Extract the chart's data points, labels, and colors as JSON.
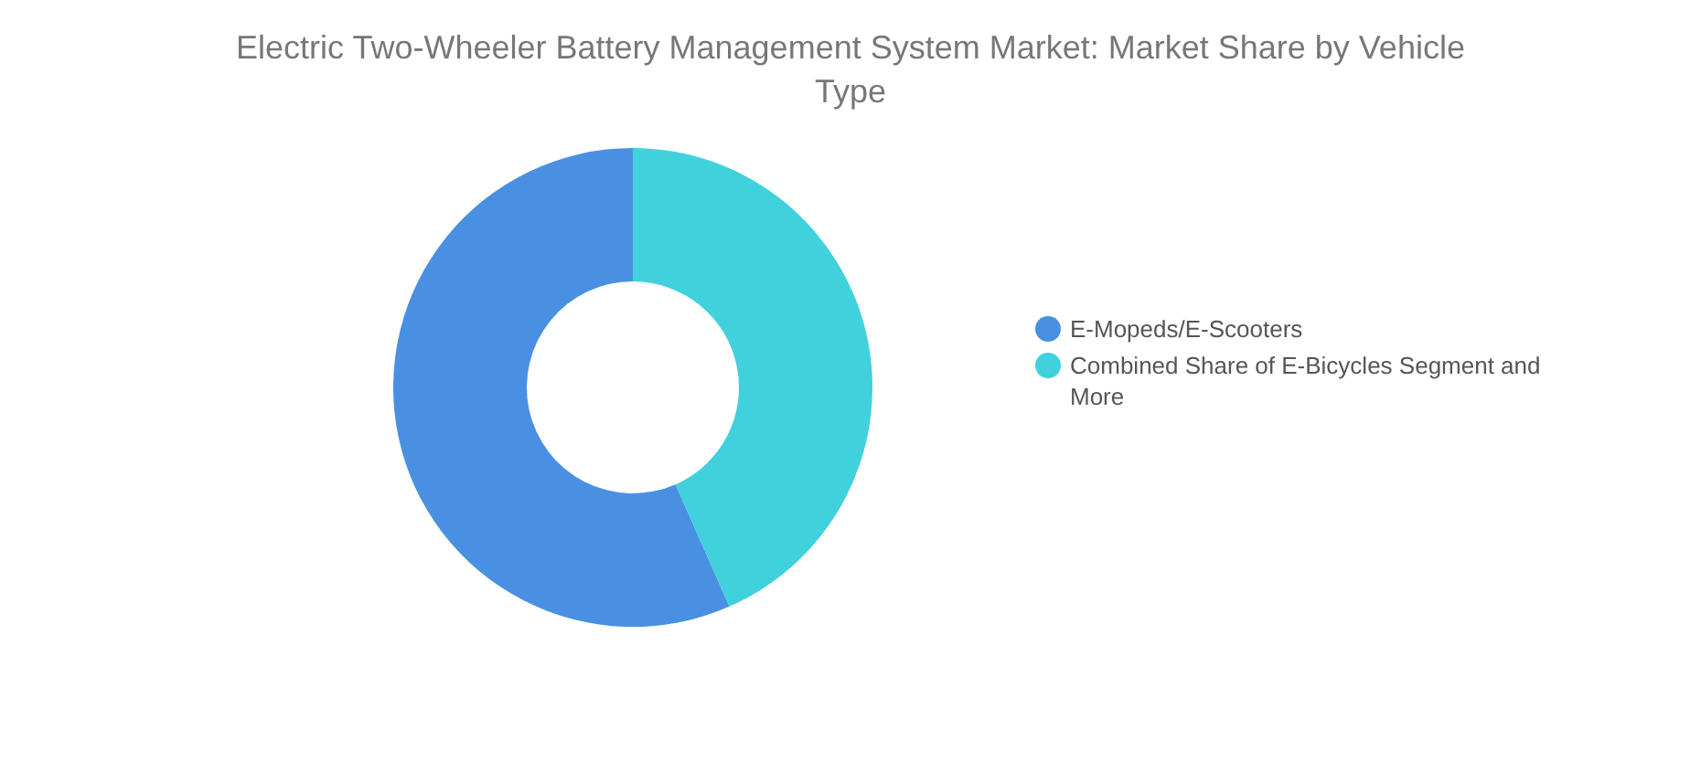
{
  "chart_data": {
    "type": "donut",
    "title": "Electric Two-Wheeler Battery Management System Market: Market Share by Vehicle Type",
    "categories": [
      "E-Mopeds/E-Scooters",
      "Combined Share of E-Bicycles Segment and More"
    ],
    "values": [
      56.6,
      43.4
    ],
    "colors": [
      "#4a90e2",
      "#40d1dc"
    ],
    "legend": "right"
  }
}
